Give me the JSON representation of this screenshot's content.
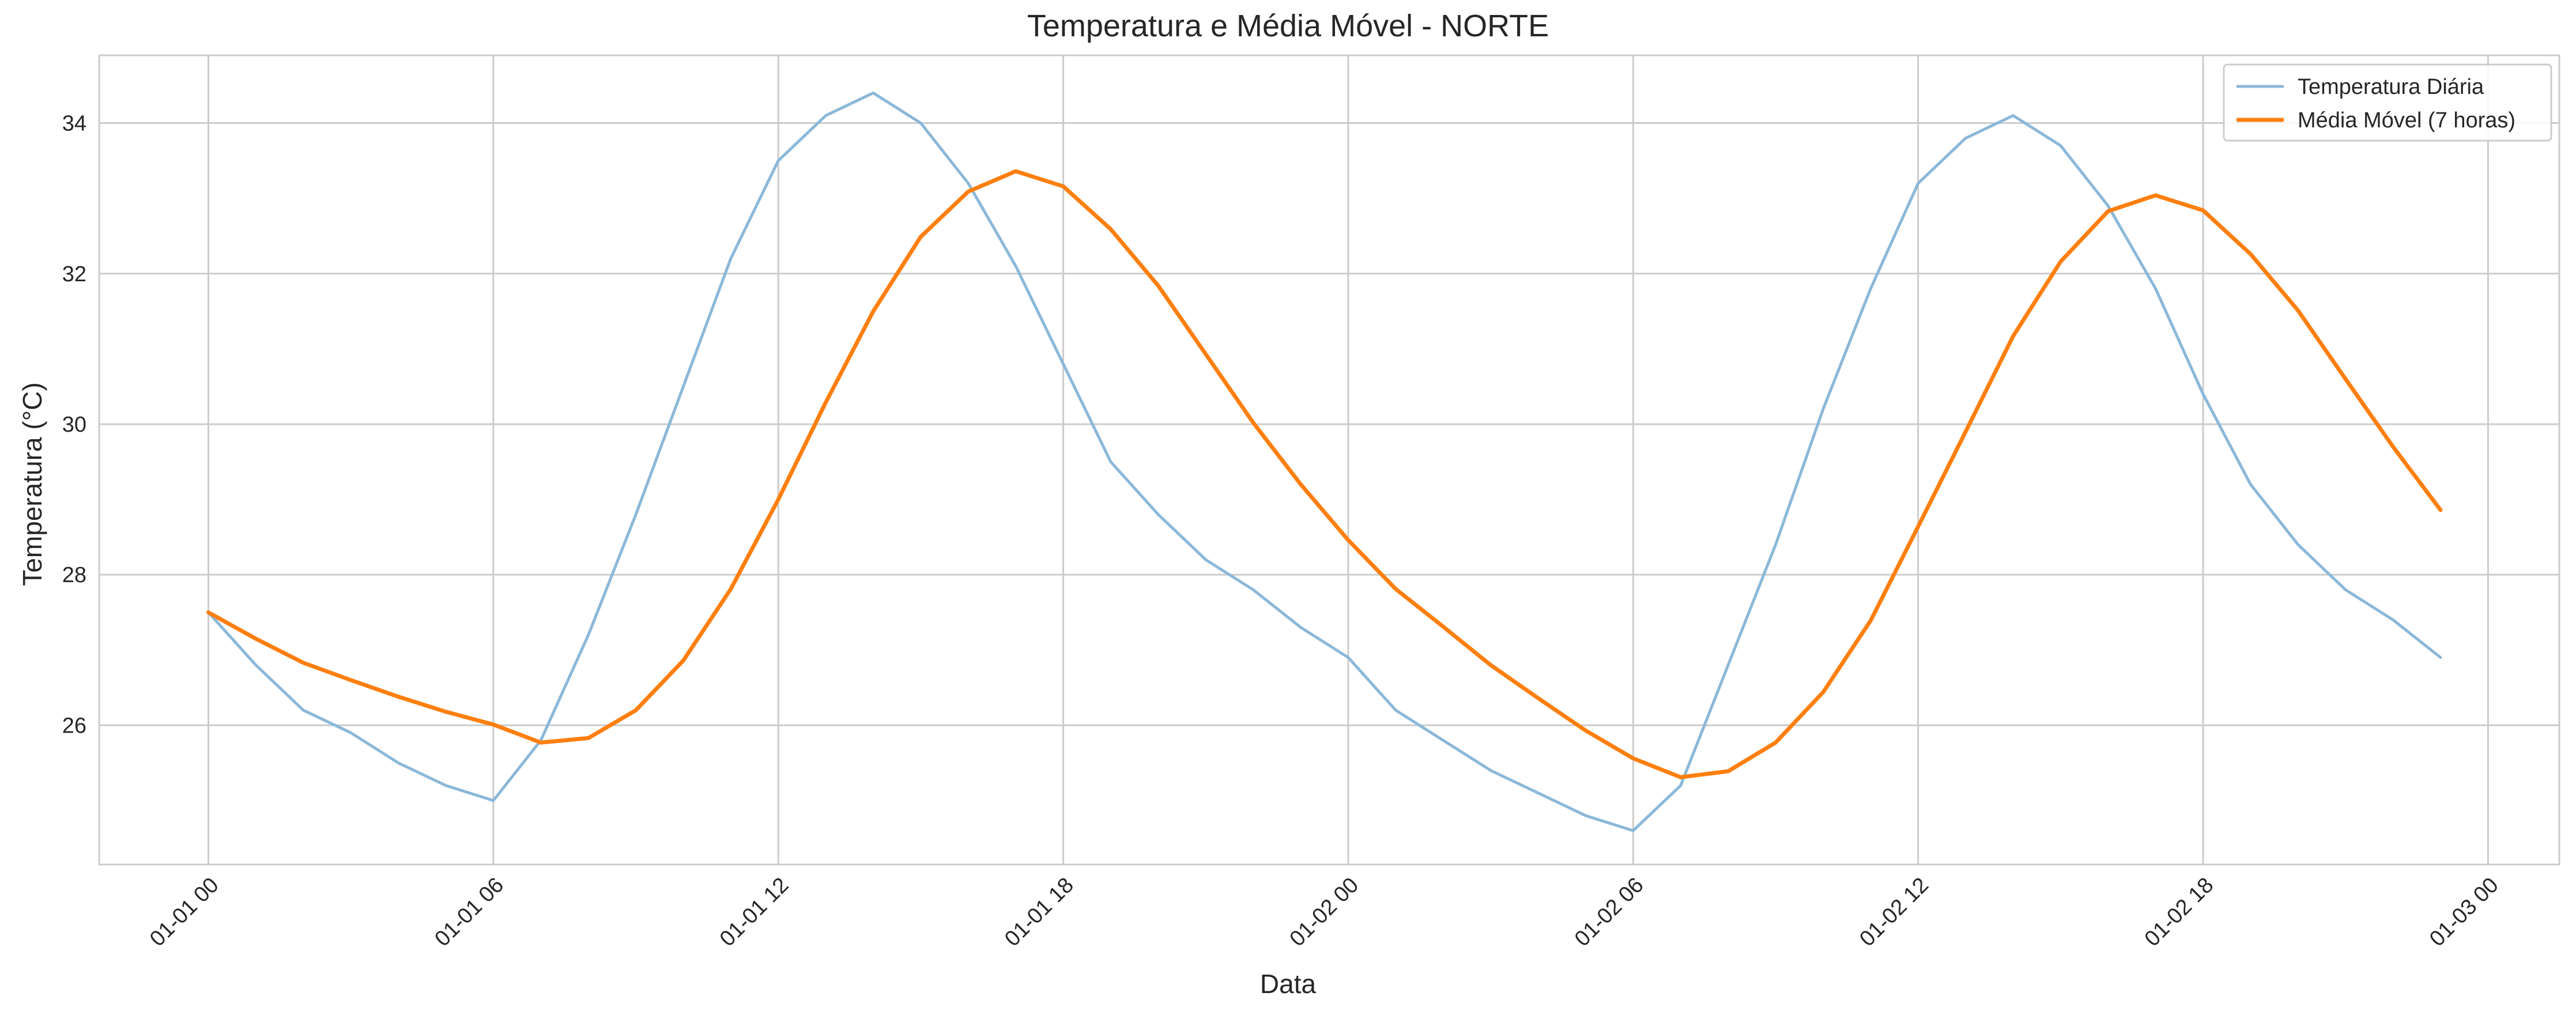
{
  "chart_data": {
    "type": "line",
    "title": "Temperatura e Média Móvel - NORTE",
    "xlabel": "Data",
    "ylabel": "Temperatura (°C)",
    "x_tick_labels": [
      "01-01 00",
      "01-01 06",
      "01-01 12",
      "01-01 18",
      "01-02 00",
      "01-02 06",
      "01-02 12",
      "01-02 18",
      "01-03 00"
    ],
    "y_ticks": [
      26,
      28,
      30,
      32,
      34
    ],
    "y_tick_labels": [
      "26",
      "28",
      "30",
      "32",
      "34"
    ],
    "xlim_hours": [
      -2.3,
      49.5
    ],
    "ylim": [
      24.15,
      34.9
    ],
    "grid": true,
    "legend_position": "upper right",
    "x_hours": [
      0,
      1,
      2,
      3,
      4,
      5,
      6,
      7,
      8,
      9,
      10,
      11,
      12,
      13,
      14,
      15,
      16,
      17,
      18,
      19,
      20,
      21,
      22,
      23,
      24,
      25,
      26,
      27,
      28,
      29,
      30,
      31,
      32,
      33,
      34,
      35,
      36,
      37,
      38,
      39,
      40,
      41,
      42,
      43,
      44,
      45,
      46,
      47
    ],
    "series": [
      {
        "name": "Temperatura Diária",
        "color": "#8bb8d9",
        "values": [
          27.5,
          26.8,
          26.2,
          25.9,
          25.5,
          25.2,
          25.0,
          25.8,
          27.2,
          28.8,
          30.5,
          32.2,
          33.5,
          34.1,
          34.4,
          34.0,
          33.2,
          32.1,
          30.8,
          29.5,
          28.8,
          28.2,
          27.8,
          27.3,
          26.9,
          26.2,
          25.8,
          25.4,
          25.1,
          24.8,
          24.6,
          25.2,
          26.8,
          28.4,
          30.2,
          31.8,
          33.2,
          33.8,
          34.1,
          33.7,
          32.9,
          31.8,
          30.4,
          29.2,
          28.4,
          27.8,
          27.4,
          26.9
        ]
      },
      {
        "name": "Média Móvel (7 horas)",
        "color": "#ff7f0e",
        "values": [
          27.5,
          27.15,
          26.83,
          26.6,
          26.38,
          26.18,
          26.01,
          25.77,
          25.83,
          26.2,
          26.86,
          27.81,
          29.0,
          30.29,
          31.5,
          32.49,
          33.09,
          33.36,
          33.16,
          32.59,
          31.84,
          30.93,
          30.02,
          29.2,
          28.46,
          27.81,
          27.31,
          26.8,
          26.36,
          25.93,
          25.56,
          25.31,
          25.39,
          25.77,
          26.44,
          27.39,
          28.64,
          29.9,
          31.17,
          32.16,
          32.83,
          33.04,
          32.84,
          32.26,
          31.51,
          30.6,
          29.7,
          28.86
        ]
      }
    ]
  }
}
